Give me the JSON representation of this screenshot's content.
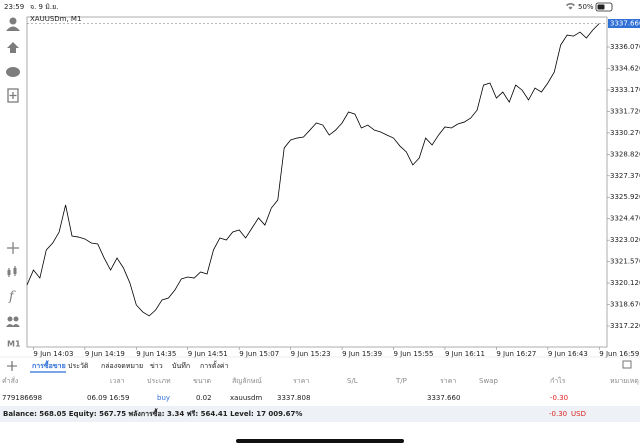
{
  "status_bar": {
    "time": "23:59",
    "date": "จ. 9 มิ.ย.",
    "battery": "50%"
  },
  "toolbar": {
    "timeframe": "M1"
  },
  "chart_data": {
    "type": "line",
    "title": "XAUUSDm, M1",
    "color": "#000000",
    "categories": [
      null,
      "9 Jun 14:03",
      null,
      null,
      null,
      null,
      null,
      null,
      null,
      "9 Jun 14:19",
      null,
      null,
      null,
      null,
      null,
      null,
      null,
      "9 Jun 14:35",
      null,
      null,
      null,
      null,
      null,
      null,
      null,
      "9 Jun 14:51",
      null,
      null,
      null,
      null,
      null,
      null,
      null,
      "9 Jun 15:07",
      null,
      null,
      null,
      null,
      null,
      null,
      null,
      "9 Jun 15:23",
      null,
      null,
      null,
      null,
      null,
      null,
      null,
      "9 Jun 15:39",
      null,
      null,
      null,
      null,
      null,
      null,
      null,
      "9 Jun 15:55",
      null,
      null,
      null,
      null,
      null,
      null,
      null,
      "9 Jun 16:11",
      null,
      null,
      null,
      null,
      null,
      null,
      null,
      "9 Jun 16:27",
      null,
      null,
      null,
      null,
      null,
      null,
      null,
      "9 Jun 16:43",
      null,
      null,
      null,
      null,
      null,
      null,
      null,
      "9 Jun 16:59"
    ],
    "values": [
      3319.99,
      3321.0,
      3320.46,
      3322.36,
      3322.83,
      3323.57,
      3325.4,
      3323.3,
      3323.23,
      3323.1,
      3322.83,
      3322.76,
      3321.81,
      3321.0,
      3321.81,
      3321.14,
      3320.13,
      3318.64,
      3318.17,
      3317.9,
      3318.3,
      3318.98,
      3319.11,
      3319.65,
      3320.4,
      3320.53,
      3320.46,
      3320.87,
      3320.73,
      3322.36,
      3323.17,
      3323.03,
      3323.57,
      3323.71,
      3323.17,
      3323.84,
      3324.52,
      3324.04,
      3325.19,
      3325.73,
      3329.25,
      3329.79,
      3329.92,
      3329.99,
      3330.46,
      3330.94,
      3330.8,
      3330.12,
      3330.46,
      3330.94,
      3331.68,
      3331.54,
      3330.6,
      3330.8,
      3330.46,
      3330.33,
      3330.12,
      3329.92,
      3329.38,
      3328.98,
      3328.1,
      3328.57,
      3329.92,
      3329.45,
      3330.12,
      3330.67,
      3330.6,
      3330.87,
      3331.0,
      3331.27,
      3331.81,
      3333.5,
      3333.64,
      3332.62,
      3333.03,
      3332.35,
      3333.5,
      3333.16,
      3332.49,
      3333.3,
      3333.03,
      3333.64,
      3334.38,
      3336.21,
      3336.88,
      3336.81,
      3337.08,
      3336.68,
      3337.22,
      3337.66
    ],
    "ylim": [
      3315.8,
      3338.1
    ],
    "yticks": [
      {
        "value": 3336.07,
        "label": "3336.070"
      },
      {
        "value": 3334.62,
        "label": "3334.620"
      },
      {
        "value": 3333.17,
        "label": "3333.170"
      },
      {
        "value": 3331.72,
        "label": "3331.720"
      },
      {
        "value": 3330.27,
        "label": "3330.270"
      },
      {
        "value": 3328.82,
        "label": "3328.820"
      },
      {
        "value": 3327.37,
        "label": "3327.370"
      },
      {
        "value": 3325.92,
        "label": "3325.920"
      },
      {
        "value": 3324.47,
        "label": "3324.470"
      },
      {
        "value": 3323.02,
        "label": "3323.020"
      },
      {
        "value": 3321.57,
        "label": "3321.570"
      },
      {
        "value": 3320.12,
        "label": "3320.120"
      },
      {
        "value": 3318.67,
        "label": "3318.670"
      },
      {
        "value": 3317.22,
        "label": "3317.220"
      }
    ],
    "current_price": {
      "value": 3337.66,
      "label": "3337.660"
    },
    "current_price_color": "#2f6fd6"
  },
  "tabs": [
    "การซื้อขาย",
    "ประวัติ",
    "กล่องจดหมาย",
    "ข่าว",
    "บันทึก",
    "การตั้งค่า"
  ],
  "table": {
    "headers": [
      "คำสั่ง",
      "เวลา",
      "ประเภท",
      "ขนาด",
      "สัญลักษณ์",
      "ราคา",
      "S/L",
      "T/P",
      "ราคา",
      "Swap",
      "กำไร",
      "หมายเหตุ"
    ],
    "rows": [
      [
        "779186698",
        "06.09 16:59",
        "buy",
        "0.02",
        "xauusdm",
        "3337.808",
        "3337.660",
        "-0.30"
      ]
    ]
  },
  "summary": {
    "text": "Balance: 568.05 Equity: 567.75 พลังการซื้อ: 3.34 ฟรี: 564.41 Level: 17 009.67%",
    "profit": "-0.30",
    "currency": "USD"
  }
}
